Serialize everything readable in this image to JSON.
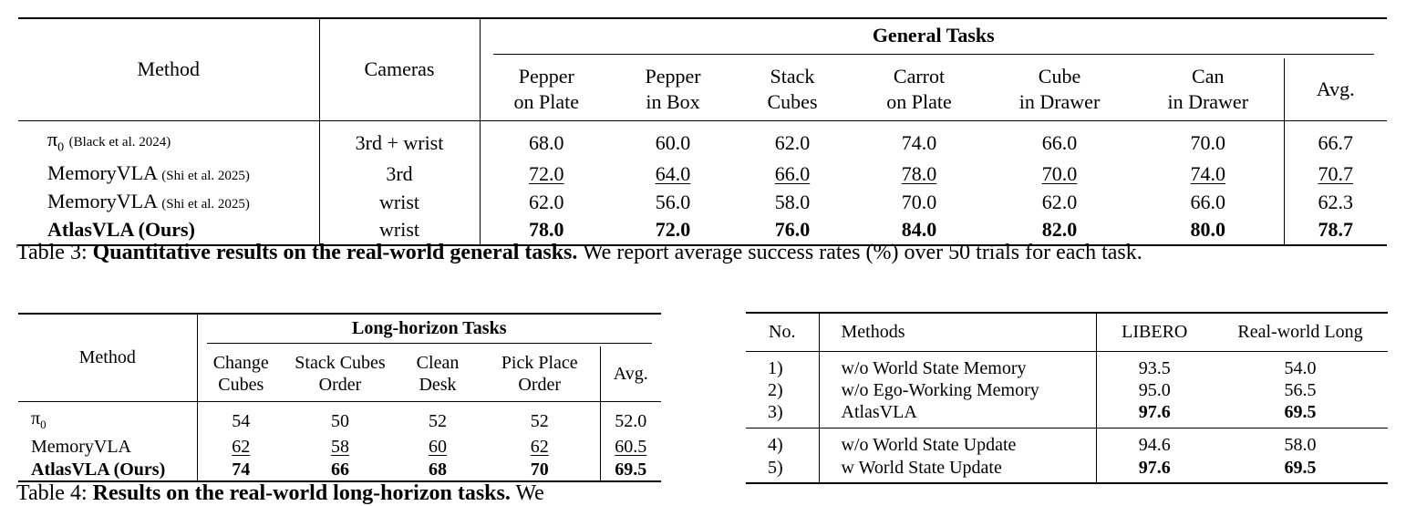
{
  "table3": {
    "method_header": "Method",
    "cameras_header": "Cameras",
    "group_header": "General Tasks",
    "task_headers": [
      [
        "Pepper",
        "on Plate"
      ],
      [
        "Pepper",
        "in Box"
      ],
      [
        "Stack",
        "Cubes"
      ],
      [
        "Carrot",
        "on Plate"
      ],
      [
        "Cube",
        "in Drawer"
      ],
      [
        "Can",
        "in Drawer"
      ]
    ],
    "avg_header": "Avg.",
    "rows": [
      {
        "method": "π",
        "sub": "0",
        "cite": "(Black et al. 2024)",
        "cameras": "3rd + wrist",
        "values": [
          "68.0",
          "60.0",
          "62.0",
          "74.0",
          "66.0",
          "70.0"
        ],
        "avg": "66.7",
        "style": "normal"
      },
      {
        "method": "MemoryVLA",
        "sub": "",
        "cite": "(Shi et al. 2025)",
        "cameras": "3rd",
        "values": [
          "72.0",
          "64.0",
          "66.0",
          "78.0",
          "70.0",
          "74.0"
        ],
        "avg": "70.7",
        "style": "underline"
      },
      {
        "method": "MemoryVLA",
        "sub": "",
        "cite": "(Shi et al. 2025)",
        "cameras": "wrist",
        "values": [
          "62.0",
          "56.0",
          "58.0",
          "70.0",
          "62.0",
          "66.0"
        ],
        "avg": "62.3",
        "style": "normal"
      },
      {
        "method": "AtlasVLA (Ours)",
        "sub": "",
        "cite": "",
        "cameras": "wrist",
        "values": [
          "78.0",
          "72.0",
          "76.0",
          "84.0",
          "82.0",
          "80.0"
        ],
        "avg": "78.7",
        "style": "bold"
      }
    ],
    "caption_label": "Table 3:",
    "caption_bold": "Quantitative results on the real-world general tasks.",
    "caption_rest": "We report average success rates (%) over 50 trials for each task."
  },
  "table4": {
    "method_header": "Method",
    "group_header": "Long-horizon Tasks",
    "task_headers": [
      [
        "Change",
        "Cubes"
      ],
      [
        "Stack Cubes",
        "Order"
      ],
      [
        "Clean",
        "Desk"
      ],
      [
        "Pick Place",
        "Order"
      ]
    ],
    "avg_header": "Avg.",
    "rows": [
      {
        "method": "π",
        "sub": "0",
        "values": [
          "54",
          "50",
          "52",
          "52"
        ],
        "avg": "52.0",
        "style": "normal"
      },
      {
        "method": "MemoryVLA",
        "sub": "",
        "values": [
          "62",
          "58",
          "60",
          "62"
        ],
        "avg": "60.5",
        "style": "underline"
      },
      {
        "method": "AtlasVLA (Ours)",
        "sub": "",
        "values": [
          "74",
          "66",
          "68",
          "70"
        ],
        "avg": "69.5",
        "style": "bold"
      }
    ],
    "caption_label": "Table 4:",
    "caption_bold": "Results on the real-world long-horizon tasks.",
    "caption_rest": "We"
  },
  "table5": {
    "headers": [
      "No.",
      "Methods",
      "LIBERO",
      "Real-world Long"
    ],
    "group1": [
      {
        "no": "1)",
        "method": "w/o World State Memory",
        "libero": "93.5",
        "real": "54.0",
        "bold": false
      },
      {
        "no": "2)",
        "method": "w/o Ego-Working Memory",
        "libero": "95.0",
        "real": "56.5",
        "bold": false
      },
      {
        "no": "3)",
        "method": "AtlasVLA",
        "libero": "97.6",
        "real": "69.5",
        "bold": true
      }
    ],
    "group2": [
      {
        "no": "4)",
        "method": "w/o World State Update",
        "libero": "94.6",
        "real": "58.0",
        "bold": false
      },
      {
        "no": "5)",
        "method": "w World State Update",
        "libero": "97.6",
        "real": "69.5",
        "bold": true
      }
    ]
  }
}
